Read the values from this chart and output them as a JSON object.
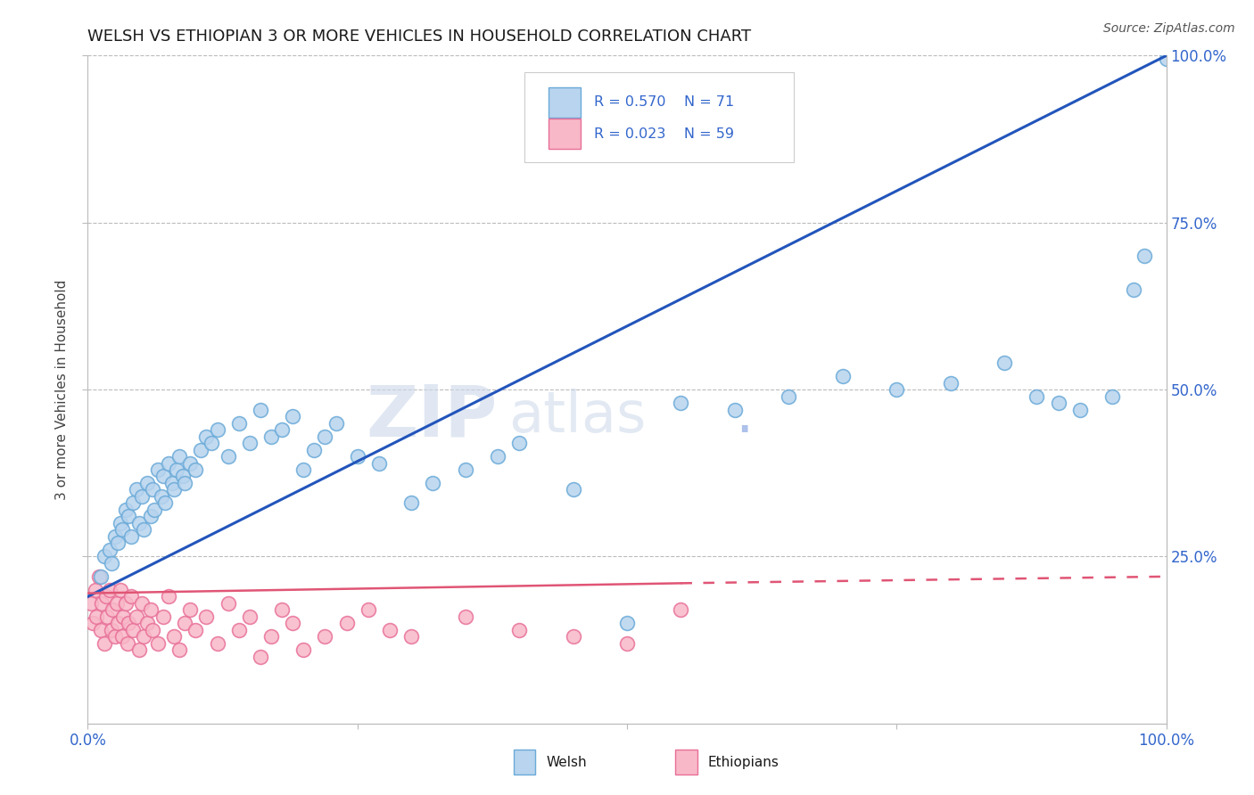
{
  "title": "Welsh vs Ethiopian 3 or more Vehicles in Household Correlation Chart",
  "source": "Source: ZipAtlas.com",
  "ylabel": "3 or more Vehicles in Household",
  "welsh_R": 0.57,
  "welsh_N": 71,
  "ethiopian_R": 0.023,
  "ethiopian_N": 59,
  "welsh_scatter_color_face": "#b8d4ee",
  "welsh_scatter_color_edge": "#6aaad8",
  "ethiopian_scatter_color_face": "#f8b8c8",
  "ethiopian_scatter_color_edge": "#e87098",
  "welsh_line_color": "#2255bb",
  "ethiopian_line_color": "#e05575",
  "watermark_zip": "ZIP",
  "watermark_atlas": "atlas",
  "watermark_dot": ".",
  "xmin": 0.0,
  "xmax": 100.0,
  "ymin": 0.0,
  "ymax": 100.0,
  "welsh_x": [
    1.2,
    1.5,
    2.0,
    2.2,
    2.5,
    2.8,
    3.0,
    3.2,
    3.5,
    3.8,
    4.0,
    4.2,
    4.5,
    4.8,
    5.0,
    5.2,
    5.5,
    5.8,
    6.0,
    6.2,
    6.5,
    6.8,
    7.0,
    7.2,
    7.5,
    7.8,
    8.0,
    8.2,
    8.5,
    8.8,
    9.0,
    9.5,
    10.0,
    10.5,
    11.0,
    11.5,
    12.0,
    13.0,
    14.0,
    15.0,
    16.0,
    17.0,
    18.0,
    19.0,
    20.0,
    21.0,
    22.0,
    23.0,
    25.0,
    27.0,
    30.0,
    32.0,
    35.0,
    38.0,
    40.0,
    45.0,
    50.0,
    55.0,
    60.0,
    65.0,
    70.0,
    75.0,
    80.0,
    85.0,
    88.0,
    90.0,
    92.0,
    95.0,
    97.0,
    98.0,
    100.0
  ],
  "welsh_y": [
    22.0,
    25.0,
    26.0,
    24.0,
    28.0,
    27.0,
    30.0,
    29.0,
    32.0,
    31.0,
    28.0,
    33.0,
    35.0,
    30.0,
    34.0,
    29.0,
    36.0,
    31.0,
    35.0,
    32.0,
    38.0,
    34.0,
    37.0,
    33.0,
    39.0,
    36.0,
    35.0,
    38.0,
    40.0,
    37.0,
    36.0,
    39.0,
    38.0,
    41.0,
    43.0,
    42.0,
    44.0,
    40.0,
    45.0,
    42.0,
    47.0,
    43.0,
    44.0,
    46.0,
    38.0,
    41.0,
    43.0,
    45.0,
    40.0,
    39.0,
    33.0,
    36.0,
    38.0,
    40.0,
    42.0,
    35.0,
    15.0,
    48.0,
    47.0,
    49.0,
    52.0,
    50.0,
    51.0,
    54.0,
    49.0,
    48.0,
    47.0,
    49.0,
    65.0,
    70.0,
    99.5
  ],
  "ethiopian_x": [
    0.3,
    0.5,
    0.7,
    0.8,
    1.0,
    1.2,
    1.3,
    1.5,
    1.7,
    1.8,
    2.0,
    2.2,
    2.3,
    2.5,
    2.7,
    2.8,
    3.0,
    3.2,
    3.3,
    3.5,
    3.7,
    3.8,
    4.0,
    4.2,
    4.5,
    4.8,
    5.0,
    5.2,
    5.5,
    5.8,
    6.0,
    6.5,
    7.0,
    7.5,
    8.0,
    8.5,
    9.0,
    9.5,
    10.0,
    11.0,
    12.0,
    13.0,
    14.0,
    15.0,
    16.0,
    17.0,
    18.0,
    19.0,
    20.0,
    22.0,
    24.0,
    26.0,
    28.0,
    30.0,
    35.0,
    40.0,
    45.0,
    50.0,
    55.0
  ],
  "ethiopian_y": [
    18.0,
    15.0,
    20.0,
    16.0,
    22.0,
    14.0,
    18.0,
    12.0,
    19.0,
    16.0,
    20.0,
    14.0,
    17.0,
    13.0,
    18.0,
    15.0,
    20.0,
    13.0,
    16.0,
    18.0,
    12.0,
    15.0,
    19.0,
    14.0,
    16.0,
    11.0,
    18.0,
    13.0,
    15.0,
    17.0,
    14.0,
    12.0,
    16.0,
    19.0,
    13.0,
    11.0,
    15.0,
    17.0,
    14.0,
    16.0,
    12.0,
    18.0,
    14.0,
    16.0,
    10.0,
    13.0,
    17.0,
    15.0,
    11.0,
    13.0,
    15.0,
    17.0,
    14.0,
    13.0,
    16.0,
    14.0,
    13.0,
    12.0,
    17.0
  ],
  "welsh_line_x0": 0.0,
  "welsh_line_y0": 19.0,
  "welsh_line_x1": 100.0,
  "welsh_line_y1": 100.0,
  "eth_line_x0": 0.0,
  "eth_line_y0": 19.5,
  "eth_line_x1": 55.0,
  "eth_line_y1": 21.0,
  "eth_dash_x0": 55.0,
  "eth_dash_y0": 21.0,
  "eth_dash_x1": 100.0,
  "eth_dash_y1": 22.0
}
